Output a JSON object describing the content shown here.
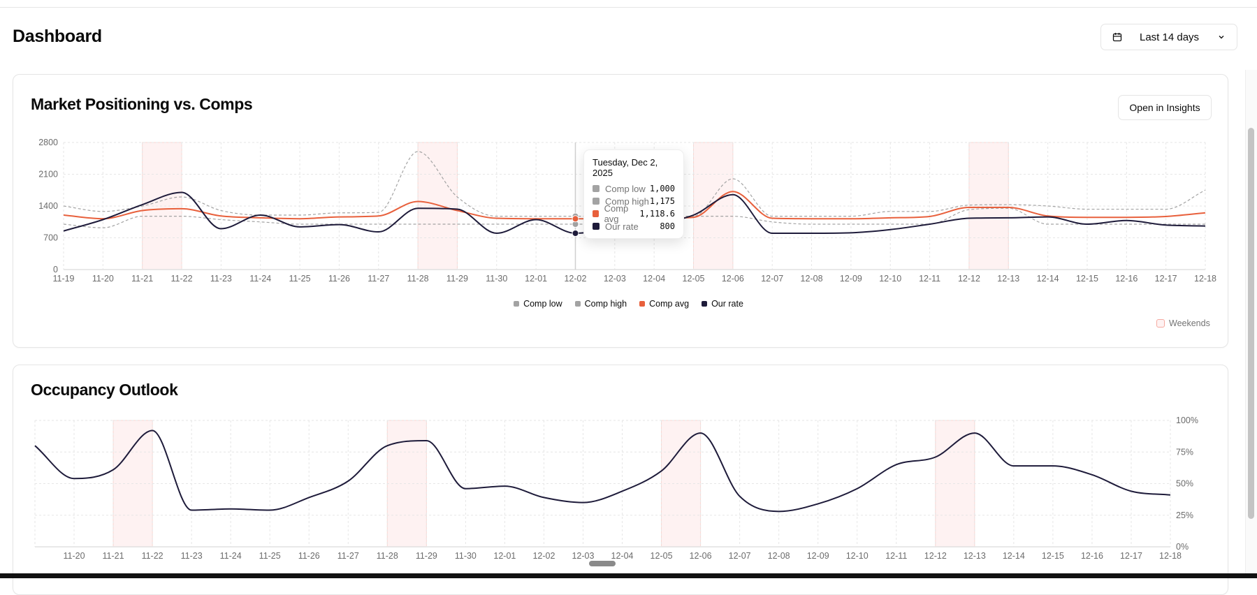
{
  "header": {
    "title": "Dashboard",
    "date_range": "Last 14 days",
    "date_icon": "calendar-icon",
    "dropdown_icon": "chevron-down-icon"
  },
  "colors": {
    "comp_low": "#a3a3a3",
    "comp_high": "#a3a3a3",
    "comp_avg": "#e8603c",
    "our_rate": "#1e1b3a",
    "weekend_fill": "#fef2f2",
    "weekend_border": "#f8d7d3"
  },
  "market_card": {
    "title": "Market Positioning vs. Comps",
    "open_button": "Open in Insights",
    "legend": [
      "Comp low",
      "Comp high",
      "Comp avg",
      "Our rate"
    ],
    "weekends_label": "Weekends",
    "tooltip": {
      "title": "Tuesday, Dec 2, 2025",
      "rows": [
        {
          "name": "Comp low",
          "value": "1,000"
        },
        {
          "name": "Comp high",
          "value": "1,175"
        },
        {
          "name": "Comp avg",
          "value": "1,118.6"
        },
        {
          "name": "Our rate",
          "value": "800"
        }
      ]
    }
  },
  "occupancy_card": {
    "title": "Occupancy Outlook"
  },
  "chart_data": [
    {
      "type": "line",
      "title": "Market Positioning vs. Comps",
      "x": [
        "11-19",
        "11-20",
        "11-21",
        "11-22",
        "11-23",
        "11-24",
        "11-25",
        "11-26",
        "11-27",
        "11-28",
        "11-29",
        "11-30",
        "12-01",
        "12-02",
        "12-03",
        "12-04",
        "12-05",
        "12-06",
        "12-07",
        "12-08",
        "12-09",
        "12-10",
        "12-11",
        "12-12",
        "12-13",
        "12-14",
        "12-15",
        "12-16",
        "12-17",
        "12-18"
      ],
      "ylim": [
        0,
        2800
      ],
      "yticks": [
        "0",
        "700",
        "1400",
        "2100",
        "2800"
      ],
      "ytick_values": [
        0,
        700,
        1400,
        2100,
        2800
      ],
      "grid": true,
      "legend": "bottom-center",
      "weekends": [
        [
          "11-21",
          "11-22"
        ],
        [
          "11-28",
          "11-29"
        ],
        [
          "12-05",
          "12-06"
        ],
        [
          "12-12",
          "12-13"
        ]
      ],
      "highlight_x": "12-02",
      "series": [
        {
          "name": "Comp low",
          "style": "dashed",
          "values": [
            1000,
            920,
            1175,
            1175,
            1100,
            1050,
            1000,
            1000,
            1000,
            1000,
            1000,
            1000,
            1000,
            1000,
            1000,
            1000,
            1175,
            1175,
            1050,
            1000,
            1000,
            1000,
            1000,
            1320,
            1350,
            1000,
            1000,
            1000,
            1000,
            1000
          ]
        },
        {
          "name": "Comp high",
          "style": "dashed",
          "values": [
            1400,
            1280,
            1400,
            1600,
            1300,
            1200,
            1200,
            1250,
            1260,
            2600,
            1600,
            1175,
            1175,
            1175,
            1175,
            1175,
            1175,
            2000,
            1175,
            1175,
            1175,
            1280,
            1280,
            1420,
            1430,
            1400,
            1330,
            1330,
            1330,
            1750
          ]
        },
        {
          "name": "Comp avg",
          "style": "solid",
          "values": [
            1200,
            1120,
            1300,
            1340,
            1180,
            1140,
            1120,
            1160,
            1180,
            1500,
            1300,
            1130,
            1120,
            1118.6,
            1118,
            1130,
            1150,
            1720,
            1130,
            1120,
            1120,
            1140,
            1170,
            1370,
            1370,
            1180,
            1150,
            1150,
            1170,
            1250
          ]
        },
        {
          "name": "Our rate",
          "style": "solid",
          "values": [
            850,
            1100,
            1430,
            1700,
            900,
            1200,
            940,
            990,
            830,
            1350,
            1330,
            800,
            1100,
            800,
            900,
            1000,
            1200,
            1650,
            800,
            800,
            810,
            880,
            1000,
            1130,
            1140,
            1160,
            1000,
            1080,
            980,
            960
          ]
        }
      ]
    },
    {
      "type": "line",
      "title": "Occupancy Outlook",
      "x": [
        "11-19",
        "11-20",
        "11-21",
        "11-22",
        "11-23",
        "11-24",
        "11-25",
        "11-26",
        "11-27",
        "11-28",
        "11-29",
        "11-30",
        "12-01",
        "12-02",
        "12-03",
        "12-04",
        "12-05",
        "12-06",
        "12-07",
        "12-08",
        "12-09",
        "12-10",
        "12-11",
        "12-12",
        "12-13",
        "12-14",
        "12-15",
        "12-16",
        "12-17",
        "12-18"
      ],
      "x_tick_labels": [
        "11-20",
        "11-21",
        "11-22",
        "11-23",
        "11-24",
        "11-25",
        "11-26",
        "11-27",
        "11-28",
        "11-29",
        "11-30",
        "12-01",
        "12-02",
        "12-03",
        "12-04",
        "12-05",
        "12-06",
        "12-07",
        "12-08",
        "12-09",
        "12-10",
        "12-11",
        "12-12",
        "12-13",
        "12-14",
        "12-15",
        "12-16",
        "12-17",
        "12-18"
      ],
      "ylim": [
        0,
        100
      ],
      "yticks": [
        "0%",
        "25%",
        "50%",
        "75%",
        "100%"
      ],
      "ytick_values": [
        0,
        25,
        50,
        75,
        100
      ],
      "y_axis_side": "right",
      "grid": true,
      "weekends": [
        [
          "11-21",
          "11-22"
        ],
        [
          "11-28",
          "11-29"
        ],
        [
          "12-05",
          "12-06"
        ],
        [
          "12-12",
          "12-13"
        ]
      ],
      "series": [
        {
          "values": [
            80,
            54,
            61,
            92,
            29,
            30,
            29,
            39,
            52,
            80,
            84,
            46,
            48,
            39,
            35,
            44,
            60,
            90,
            40,
            28,
            34,
            46,
            65,
            71,
            90,
            64,
            64,
            57,
            44,
            41
          ]
        }
      ]
    }
  ]
}
